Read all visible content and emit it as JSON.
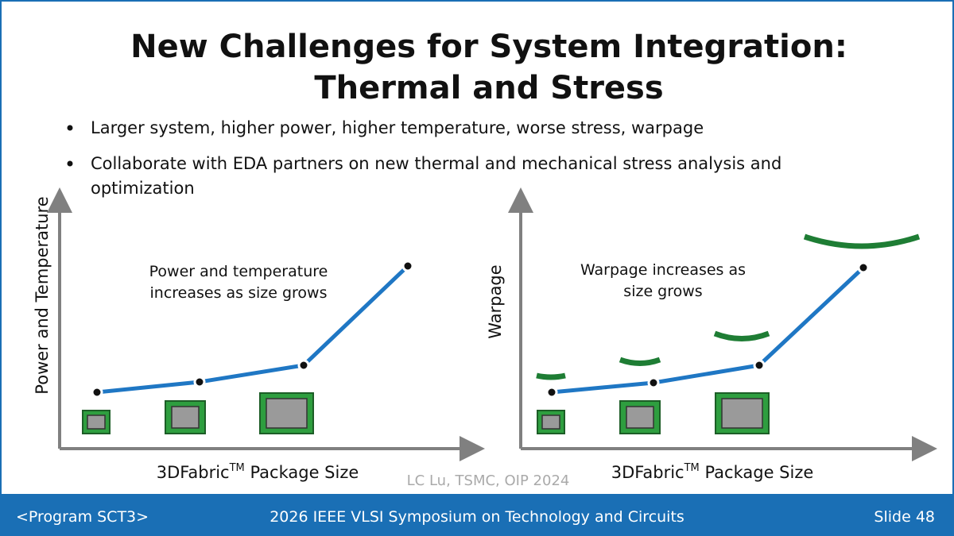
{
  "header": {
    "title": [
      "New Challenges for System Integration:",
      "Thermal and Stress"
    ]
  },
  "bullets": [
    [
      "Larger system, higher power, higher temperature, worse stress, warpage"
    ],
    [
      "Collaborate with EDA partners on new thermal and mechanical stress analysis and",
      "optimization"
    ]
  ],
  "left_diagram": {
    "y_label": "Power and Temperature",
    "x_label": {
      "main": "3DFabric",
      "superscript": "TM",
      "rest": " Package Size"
    },
    "note": [
      "Power and temperature",
      "increases as size grows"
    ]
  },
  "right_diagram": {
    "y_label": "Warpage",
    "x_label": {
      "main": "3DFabric",
      "superscript": "TM",
      "rest": " Package Size"
    },
    "note": [
      "Warpage increases as",
      "size grows"
    ]
  },
  "credit": "LC Lu, TSMC, OIP 2024",
  "footer": {
    "left": "<Program SCT3>",
    "center": "2026 IEEE VLSI Symposium on Technology and Circuits",
    "right": "Slide 48"
  }
}
